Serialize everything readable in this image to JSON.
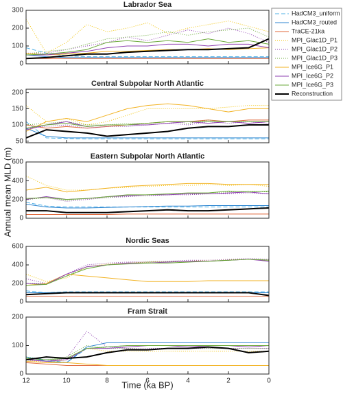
{
  "axis_labels": {
    "x": "Time (ka BP)",
    "y": "Annual mean MLD (m)"
  },
  "series_styles": [
    {
      "name": "HadCM3_uniform",
      "color": "#4fb0e6",
      "dash": "6,3",
      "width": 1
    },
    {
      "name": "HadCM3_routed",
      "color": "#2e86d1",
      "dash": "none",
      "width": 1
    },
    {
      "name": "TraCE-21ka",
      "color": "#e0673a",
      "dash": "none",
      "width": 1
    },
    {
      "name": "MPI_Glac1D_P1",
      "color": "#f2c200",
      "dash": "1,2",
      "width": 1
    },
    {
      "name": "MPI_Glac1D_P2",
      "color": "#8e3fb0",
      "dash": "1,2",
      "width": 1
    },
    {
      "name": "MPI_Glac1D_P3",
      "color": "#6aa838",
      "dash": "1,2",
      "width": 1
    },
    {
      "name": "MPI_Ice6G_P1",
      "color": "#f2b221",
      "dash": "none",
      "width": 1
    },
    {
      "name": "MPI_Ice6G_P2",
      "color": "#8e3fb0",
      "dash": "none",
      "width": 1
    },
    {
      "name": "MPI_Ice6G_P3",
      "color": "#6aa838",
      "dash": "none",
      "width": 1
    },
    {
      "name": "Reconstruction",
      "color": "#000000",
      "dash": "none",
      "width": 2
    }
  ],
  "chart_data": [
    {
      "type": "line",
      "title": "Labrador Sea",
      "x": [
        12,
        11,
        10,
        9,
        8,
        7,
        6,
        5,
        4,
        3,
        2,
        1,
        0
      ],
      "xlim": [
        12,
        0
      ],
      "ylim": [
        0,
        300
      ],
      "yticks": [
        0,
        100,
        200,
        300
      ],
      "series": [
        {
          "values": [
            90,
            60,
            45,
            40,
            40,
            40,
            40,
            40,
            40,
            40,
            40,
            40,
            40
          ]
        },
        {
          "values": [
            50,
            40,
            35,
            35,
            35,
            35,
            35,
            35,
            35,
            35,
            35,
            35,
            35
          ]
        },
        {
          "values": [
            30,
            30,
            30,
            30,
            30,
            30,
            30,
            30,
            30,
            30,
            30,
            30,
            30
          ]
        },
        {
          "values": [
            250,
            60,
            120,
            220,
            180,
            200,
            230,
            170,
            200,
            220,
            240,
            210,
            180
          ]
        },
        {
          "values": [
            60,
            60,
            80,
            100,
            120,
            150,
            130,
            160,
            190,
            170,
            200,
            170,
            120
          ]
        },
        {
          "values": [
            55,
            70,
            80,
            110,
            140,
            150,
            160,
            180,
            160,
            180,
            190,
            200,
            150
          ]
        },
        {
          "values": [
            60,
            50,
            55,
            60,
            70,
            70,
            75,
            80,
            80,
            85,
            80,
            85,
            90
          ]
        },
        {
          "values": [
            50,
            50,
            60,
            70,
            90,
            100,
            100,
            110,
            110,
            100,
            110,
            110,
            90
          ]
        },
        {
          "values": [
            50,
            55,
            65,
            80,
            120,
            130,
            120,
            130,
            120,
            140,
            120,
            130,
            110
          ]
        },
        {
          "values": [
            30,
            35,
            45,
            55,
            55,
            65,
            70,
            75,
            80,
            80,
            85,
            90,
            140
          ]
        }
      ]
    },
    {
      "type": "line",
      "title": "Central Subpolar North Atlantic",
      "x": [
        12,
        11,
        10,
        9,
        8,
        7,
        6,
        5,
        4,
        3,
        2,
        1,
        0
      ],
      "xlim": [
        12,
        0
      ],
      "ylim": [
        45,
        210
      ],
      "yticks": [
        50,
        100,
        150,
        200
      ],
      "series": [
        {
          "values": [
            110,
            60,
            58,
            57,
            57,
            57,
            57,
            57,
            57,
            57,
            57,
            57,
            57
          ]
        },
        {
          "values": [
            90,
            65,
            60,
            60,
            60,
            60,
            60,
            60,
            60,
            60,
            60,
            60,
            60
          ]
        },
        {
          "values": [
            100,
            90,
            95,
            90,
            95,
            100,
            105,
            110,
            110,
            115,
            110,
            115,
            115
          ]
        },
        {
          "values": [
            160,
            110,
            120,
            100,
            110,
            130,
            150,
            150,
            150,
            150,
            155,
            160,
            160
          ]
        },
        {
          "values": [
            90,
            95,
            100,
            90,
            95,
            95,
            100,
            105,
            100,
            110,
            105,
            110,
            105
          ]
        },
        {
          "values": [
            100,
            105,
            110,
            100,
            100,
            105,
            105,
            110,
            105,
            115,
            110,
            110,
            110
          ]
        },
        {
          "values": [
            80,
            110,
            120,
            110,
            130,
            150,
            160,
            165,
            160,
            150,
            140,
            150,
            150
          ]
        },
        {
          "values": [
            85,
            100,
            110,
            95,
            100,
            100,
            100,
            105,
            110,
            105,
            110,
            105,
            110
          ]
        },
        {
          "values": [
            90,
            100,
            105,
            95,
            100,
            100,
            105,
            110,
            110,
            110,
            110,
            110,
            110
          ]
        },
        {
          "values": [
            60,
            85,
            80,
            75,
            65,
            70,
            75,
            80,
            90,
            95,
            95,
            100,
            100
          ]
        }
      ]
    },
    {
      "type": "line",
      "title": "Eastern Subpolar North Atlantic",
      "x": [
        12,
        11,
        10,
        9,
        8,
        7,
        6,
        5,
        4,
        3,
        2,
        1,
        0
      ],
      "xlim": [
        12,
        0
      ],
      "ylim": [
        0,
        600
      ],
      "yticks": [
        0,
        200,
        400,
        600
      ],
      "series": [
        {
          "values": [
            170,
            130,
            120,
            120,
            120,
            120,
            120,
            120,
            120,
            120,
            120,
            120,
            120
          ]
        },
        {
          "values": [
            150,
            120,
            110,
            110,
            115,
            120,
            125,
            130,
            130,
            135,
            135,
            135,
            135
          ]
        },
        {
          "values": [
            40,
            40,
            40,
            40,
            40,
            45,
            45,
            45,
            45,
            45,
            45,
            45,
            45
          ]
        },
        {
          "values": [
            450,
            350,
            300,
            300,
            320,
            330,
            340,
            350,
            350,
            360,
            350,
            360,
            340
          ]
        },
        {
          "values": [
            200,
            220,
            180,
            200,
            220,
            230,
            240,
            250,
            250,
            260,
            260,
            270,
            260
          ]
        },
        {
          "values": [
            200,
            220,
            190,
            210,
            220,
            240,
            250,
            260,
            260,
            270,
            280,
            290,
            280
          ]
        },
        {
          "values": [
            300,
            330,
            280,
            300,
            320,
            340,
            350,
            360,
            370,
            370,
            360,
            360,
            360
          ]
        },
        {
          "values": [
            200,
            230,
            200,
            210,
            230,
            240,
            250,
            250,
            260,
            260,
            270,
            280,
            260
          ]
        },
        {
          "values": [
            210,
            220,
            200,
            210,
            230,
            250,
            250,
            260,
            270,
            270,
            290,
            280,
            290
          ]
        },
        {
          "values": [
            80,
            80,
            60,
            60,
            60,
            70,
            80,
            90,
            80,
            80,
            90,
            100,
            110
          ]
        }
      ]
    },
    {
      "type": "line",
      "title": "Nordic Seas",
      "x": [
        12,
        11,
        10,
        9,
        8,
        7,
        6,
        5,
        4,
        3,
        2,
        1,
        0
      ],
      "xlim": [
        12,
        0
      ],
      "ylim": [
        0,
        600
      ],
      "yticks": [
        0,
        200,
        400,
        600
      ],
      "series": [
        {
          "values": [
            120,
            100,
            110,
            110,
            110,
            110,
            110,
            110,
            110,
            110,
            110,
            110,
            110
          ]
        },
        {
          "values": [
            100,
            100,
            105,
            105,
            105,
            105,
            100,
            100,
            100,
            100,
            100,
            100,
            100
          ]
        },
        {
          "values": [
            60,
            60,
            60,
            60,
            60,
            60,
            60,
            60,
            60,
            60,
            60,
            60,
            60
          ]
        },
        {
          "values": [
            300,
            220,
            260,
            380,
            410,
            420,
            430,
            440,
            440,
            450,
            460,
            460,
            450
          ]
        },
        {
          "values": [
            250,
            200,
            300,
            400,
            420,
            430,
            440,
            440,
            450,
            450,
            460,
            470,
            460
          ]
        },
        {
          "values": [
            200,
            200,
            280,
            380,
            400,
            420,
            430,
            440,
            440,
            440,
            450,
            460,
            460
          ]
        },
        {
          "values": [
            180,
            200,
            300,
            280,
            260,
            240,
            220,
            220,
            220,
            230,
            230,
            230,
            230
          ]
        },
        {
          "values": [
            200,
            190,
            300,
            380,
            400,
            420,
            420,
            430,
            440,
            440,
            450,
            460,
            440
          ]
        },
        {
          "values": [
            180,
            190,
            280,
            360,
            400,
            410,
            420,
            420,
            430,
            440,
            450,
            460,
            450
          ]
        },
        {
          "values": [
            80,
            90,
            100,
            100,
            100,
            100,
            100,
            100,
            100,
            100,
            100,
            100,
            70
          ]
        }
      ]
    },
    {
      "type": "line",
      "title": "Fram Strait",
      "x": [
        12,
        11,
        10,
        9,
        8,
        7,
        6,
        5,
        4,
        3,
        2,
        1,
        0
      ],
      "xlim": [
        12,
        0
      ],
      "xticks": [
        12,
        10,
        8,
        6,
        4,
        2,
        0
      ],
      "ylim": [
        0,
        200
      ],
      "yticks": [
        0,
        100,
        200
      ],
      "series": [
        {
          "values": [
            60,
            50,
            40,
            90,
            95,
            100,
            100,
            100,
            100,
            100,
            100,
            100,
            100
          ]
        },
        {
          "values": [
            60,
            45,
            40,
            95,
            110,
            110,
            110,
            110,
            110,
            110,
            110,
            110,
            110
          ]
        },
        {
          "values": [
            40,
            35,
            30,
            30,
            30,
            30,
            30,
            30,
            30,
            30,
            30,
            30,
            30
          ]
        },
        {
          "values": [
            50,
            40,
            50,
            90,
            80,
            80,
            80,
            80,
            80,
            80,
            80,
            80,
            80
          ]
        },
        {
          "values": [
            50,
            45,
            55,
            150,
            95,
            90,
            90,
            90,
            90,
            90,
            90,
            90,
            90
          ]
        },
        {
          "values": [
            60,
            50,
            60,
            100,
            90,
            90,
            85,
            90,
            90,
            90,
            90,
            90,
            90
          ]
        },
        {
          "values": [
            45,
            40,
            40,
            35,
            30,
            30,
            30,
            30,
            30,
            30,
            30,
            30,
            30
          ]
        },
        {
          "values": [
            50,
            45,
            50,
            90,
            90,
            95,
            100,
            100,
            95,
            100,
            100,
            95,
            100
          ]
        },
        {
          "values": [
            55,
            50,
            55,
            90,
            95,
            100,
            100,
            100,
            100,
            100,
            100,
            100,
            100
          ]
        },
        {
          "values": [
            50,
            60,
            55,
            60,
            75,
            85,
            85,
            90,
            90,
            95,
            90,
            75,
            80
          ]
        }
      ]
    }
  ]
}
